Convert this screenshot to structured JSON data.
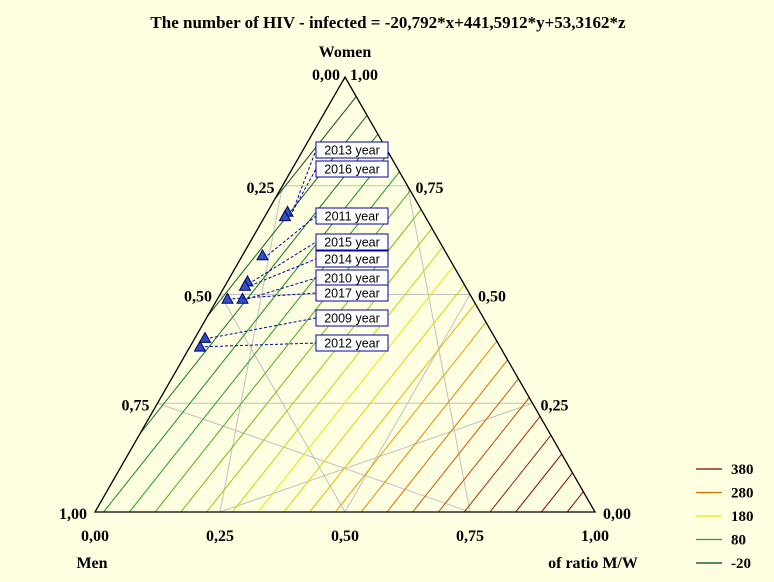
{
  "chart_data": {
    "type": "ternary-contour",
    "title": "The number of HIV - infected  = -20,792*x+441,5912*y+53,3162*z",
    "axes": {
      "top": "Women",
      "bottom_left": "Men",
      "bottom_right": "of ratio M/W"
    },
    "coefficients": {
      "x": -20.792,
      "y": 441.5912,
      "z": 53.3162
    },
    "tick_labels": [
      "0,00",
      "0,25",
      "0,50",
      "0,75",
      "1,00"
    ],
    "tick_values": [
      0,
      0.25,
      0.5,
      0.75,
      1
    ],
    "contour_levels": [
      -20,
      0,
      20,
      40,
      60,
      80,
      100,
      120,
      140,
      160,
      180,
      200,
      220,
      240,
      260,
      280,
      300,
      320,
      340,
      360,
      380,
      400,
      420
    ],
    "legend": {
      "placement": "bottom-right",
      "items": [
        {
          "label": "380",
          "color": "#8b0000"
        },
        {
          "label": "280",
          "color": "#e07000"
        },
        {
          "label": "180",
          "color": "#e8e800"
        },
        {
          "label": "80",
          "color": "#20a020"
        },
        {
          "label": "-20",
          "color": "#003820"
        }
      ]
    },
    "points": [
      {
        "label": "2013 year",
        "x": 0.69,
        "y": 0.04
      },
      {
        "label": "2016 year",
        "x": 0.68,
        "y": 0.04
      },
      {
        "label": "2011 year",
        "x": 0.59,
        "y": 0.04
      },
      {
        "label": "2015 year",
        "x": 0.53,
        "y": 0.04
      },
      {
        "label": "2014 year",
        "x": 0.52,
        "y": 0.04
      },
      {
        "label": "2010 year",
        "x": 0.49,
        "y": 0.05
      },
      {
        "label": "2017 year",
        "x": 0.49,
        "y": 0.02
      },
      {
        "label": "2009 year",
        "x": 0.4,
        "y": 0.02
      },
      {
        "label": "2012 year",
        "x": 0.38,
        "y": 0.02
      }
    ]
  }
}
